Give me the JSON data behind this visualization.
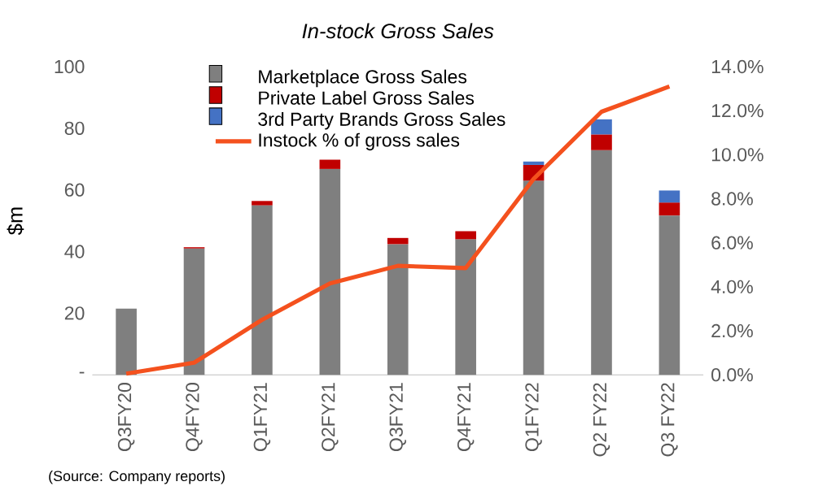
{
  "chart_data": {
    "type": "bar",
    "stacked": true,
    "title": "In-stock Gross Sales",
    "ylabel": "$m",
    "categories": [
      "Q3FY20",
      "Q4FY20",
      "Q1FY21",
      "Q2FY21",
      "Q3FY21",
      "Q4FY21",
      "Q1FY22",
      "Q2 FY22",
      "Q3 FY22"
    ],
    "series": [
      {
        "name": "Marketplace Gross Sales",
        "color": "#7f7f7f",
        "values": [
          21.5,
          41,
          55,
          66.8,
          42.4,
          44,
          63,
          72.9,
          51.7
        ]
      },
      {
        "name": "Private Label Gross Sales",
        "color": "#c00000",
        "values": [
          0,
          0.4,
          1.4,
          3,
          2,
          2.6,
          5.1,
          5.1,
          4.2
        ]
      },
      {
        "name": "3rd Party Brands Gross Sales",
        "color": "#4472c4",
        "values": [
          0,
          0,
          0,
          0,
          0,
          0,
          1.1,
          4.9,
          3.9
        ]
      },
      {
        "name": "Instock % of gross sales",
        "type": "line",
        "axis": "y2",
        "color": "#f4511e",
        "marker": "none",
        "values": [
          0.05,
          0.55,
          2.5,
          4.15,
          4.95,
          4.85,
          8.9,
          11.95,
          13.1
        ]
      }
    ],
    "ylim": [
      0,
      100
    ],
    "yticks": [
      {
        "value": 0,
        "label": "-"
      },
      20,
      40,
      60,
      80,
      100
    ],
    "y2lim": [
      0,
      14
    ],
    "y2ticks": [
      {
        "value": 0,
        "label": "0.0%"
      },
      {
        "value": 2,
        "label": "2.0%"
      },
      {
        "value": 4,
        "label": "4.0%"
      },
      {
        "value": 6,
        "label": "6.0%"
      },
      {
        "value": 8,
        "label": "8.0%"
      },
      {
        "value": 10,
        "label": "10.0%"
      },
      {
        "value": 12,
        "label": "12.0%"
      },
      {
        "value": 14,
        "label": "14.0%"
      }
    ],
    "grid": false,
    "legend": "top left",
    "annotations": [
      "(Source: Company reports)"
    ]
  }
}
